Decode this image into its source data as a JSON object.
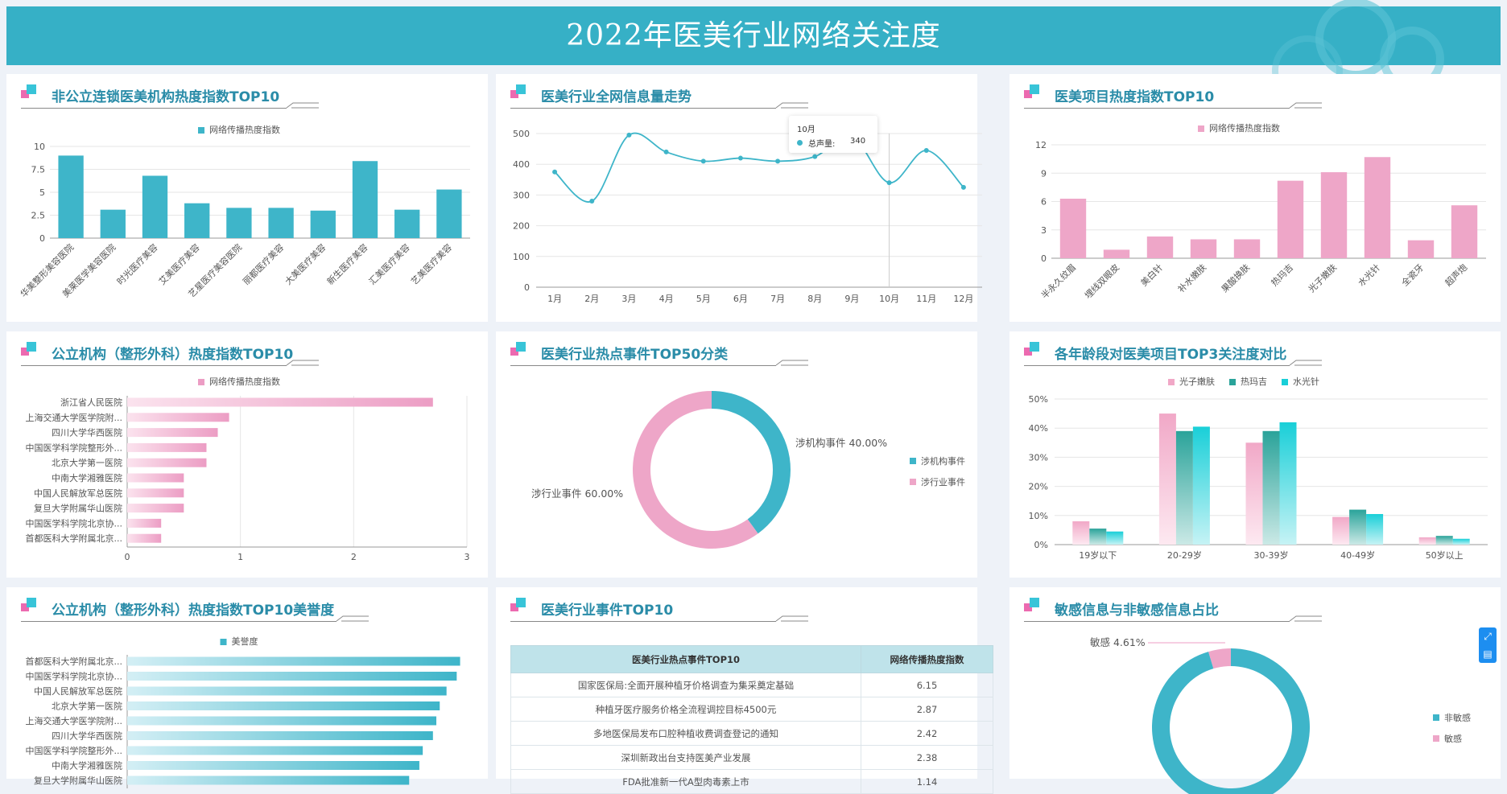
{
  "header": {
    "title": "2022年医美行业网络关注度"
  },
  "panels": {
    "p1": {
      "title": "非公立连锁医美机构热度指数TOP10"
    },
    "p2": {
      "title": "医美行业全网信息量走势"
    },
    "p3": {
      "title": "医美项目热度指数TOP10"
    },
    "p4": {
      "title": "公立机构（整形外科）热度指数TOP10"
    },
    "p5": {
      "title": "医美行业热点事件TOP50分类"
    },
    "p6": {
      "title": "各年龄段对医美项目TOP3关注度对比"
    },
    "p7": {
      "title": "公立机构（整形外科）热度指数TOP10美誉度"
    },
    "p8": {
      "title": "医美行业事件TOP10"
    },
    "p9": {
      "title": "敏感信息与非敏感信息占比"
    }
  },
  "tooltip": {
    "title": "10月",
    "label": "总声量:",
    "value": "340"
  },
  "table": {
    "headers": [
      "医美行业热点事件TOP10",
      "网络传播热度指数"
    ],
    "rows": [
      [
        "国家医保局:全面开展种植牙价格调查为集采奠定基础",
        "6.15"
      ],
      [
        "种植牙医疗服务价格全流程调控目标4500元",
        "2.87"
      ],
      [
        "多地医保局发布口腔种植收费调查登记的通知",
        "2.42"
      ],
      [
        "深圳新政出台支持医美产业发展",
        "2.38"
      ],
      [
        "FDA批准新一代A型肉毒素上市",
        "1.14"
      ]
    ]
  },
  "colors": {
    "teal": "#3eb5c9",
    "pink": "#eea6c8",
    "header": "#36b0c6",
    "title": "#2a8ca8"
  },
  "chart_data": [
    {
      "id": "c1",
      "type": "bar",
      "categories": [
        "华美整形美容医院",
        "美莱医学美容医院",
        "时光医疗美容",
        "艾美医疗美容",
        "艺星医疗美容医院",
        "丽都医疗美容",
        "大美医疗美容",
        "新生医疗美容",
        "汇美医疗美容",
        "艺美医疗美容"
      ],
      "series": [
        {
          "name": "网络传播热度指数",
          "values": [
            9,
            3.1,
            6.8,
            3.8,
            3.3,
            3.3,
            3.0,
            8.4,
            3.1,
            5.3
          ]
        }
      ],
      "yticks": [
        "0",
        "2.5",
        "5",
        "7.5",
        "10"
      ],
      "ylim": [
        0,
        10
      ]
    },
    {
      "id": "c2",
      "type": "line",
      "categories": [
        "1月",
        "2月",
        "3月",
        "4月",
        "5月",
        "6月",
        "7月",
        "8月",
        "9月",
        "10月",
        "11月",
        "12月"
      ],
      "series": [
        {
          "name": "总声量",
          "values": [
            375,
            280,
            495,
            440,
            410,
            420,
            410,
            425,
            490,
            340,
            445,
            325
          ]
        }
      ],
      "yticks": [
        "0",
        "100",
        "200",
        "300",
        "400",
        "500"
      ],
      "ylim": [
        0,
        500
      ]
    },
    {
      "id": "c3",
      "type": "bar",
      "categories": [
        "半永久纹眉",
        "埋线双眼皮",
        "美白针",
        "补水嫩肤",
        "果酸换肤",
        "热玛吉",
        "光子嫩肤",
        "水光针",
        "全瓷牙",
        "超声炮"
      ],
      "series": [
        {
          "name": "网络传播热度指数",
          "values": [
            6.3,
            0.9,
            2.3,
            2.0,
            2.0,
            8.2,
            9.1,
            10.7,
            1.9,
            5.6
          ]
        }
      ],
      "yticks": [
        "0",
        "3",
        "6",
        "9",
        "12"
      ],
      "ylim": [
        0,
        12
      ]
    },
    {
      "id": "c4",
      "type": "bar",
      "categories": [
        "浙江省人民医院",
        "上海交通大学医学院附...",
        "四川大学华西医院",
        "中国医学科学院整形外...",
        "北京大学第一医院",
        "中南大学湘雅医院",
        "中国人民解放军总医院",
        "复旦大学附属华山医院",
        "中国医学科学院北京协...",
        "首都医科大学附属北京..."
      ],
      "series": [
        {
          "name": "网络传播热度指数",
          "values": [
            2.7,
            0.9,
            0.8,
            0.7,
            0.7,
            0.5,
            0.5,
            0.5,
            0.3,
            0.3
          ]
        }
      ],
      "xticks": [
        "0",
        "1",
        "2",
        "3"
      ],
      "xlim": [
        0,
        3
      ]
    },
    {
      "id": "c5",
      "type": "pie",
      "labels": [
        "涉机构事件",
        "涉行业事件"
      ],
      "values": [
        40,
        60
      ],
      "data_labels": [
        "涉机构事件 40.00%",
        "涉行业事件 60.00%"
      ]
    },
    {
      "id": "c6",
      "type": "bar",
      "categories": [
        "19岁以下",
        "20-29岁",
        "30-39岁",
        "40-49岁",
        "50岁以上"
      ],
      "series": [
        {
          "name": "光子嫩肤",
          "values": [
            8,
            45,
            35,
            9.5,
            2.5
          ]
        },
        {
          "name": "热玛吉",
          "values": [
            5.5,
            39,
            39,
            12,
            3
          ]
        },
        {
          "name": "水光针",
          "values": [
            4.5,
            40.5,
            42,
            10.5,
            2
          ]
        }
      ],
      "yticks": [
        "0%",
        "10%",
        "20%",
        "30%",
        "40%",
        "50%"
      ],
      "ylim": [
        0,
        50
      ]
    },
    {
      "id": "c7",
      "type": "bar",
      "categories": [
        "首都医科大学附属北京...",
        "中国医学科学院北京协...",
        "中国人民解放军总医院",
        "北京大学第一医院",
        "上海交通大学医学院附...",
        "四川大学华西医院",
        "中国医学科学院整形外...",
        "中南大学湘雅医院",
        "复旦大学附属华山医院"
      ],
      "series": [
        {
          "name": "美誉度",
          "values": [
            98,
            97,
            94,
            92,
            91,
            90,
            87,
            86,
            83
          ]
        }
      ],
      "xlim": [
        0,
        100
      ]
    },
    {
      "id": "c9",
      "type": "pie",
      "labels": [
        "非敏感",
        "敏感"
      ],
      "values": [
        95.39,
        4.61
      ],
      "data_labels": [
        "敏感 4.61%"
      ]
    }
  ]
}
